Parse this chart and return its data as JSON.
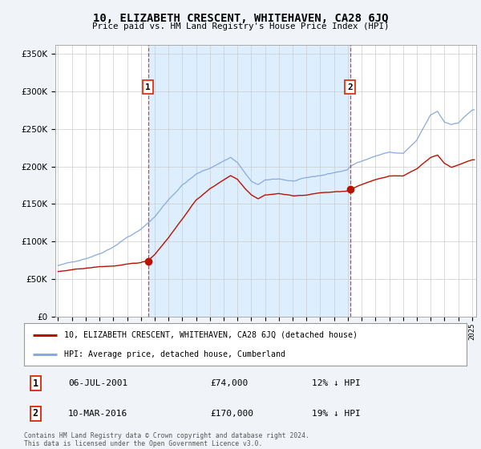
{
  "title": "10, ELIZABETH CRESCENT, WHITEHAVEN, CA28 6JQ",
  "subtitle": "Price paid vs. HM Land Registry's House Price Index (HPI)",
  "ytick_values": [
    0,
    50000,
    100000,
    150000,
    200000,
    250000,
    300000,
    350000
  ],
  "ylim": [
    0,
    362000
  ],
  "xlim_start": 1994.8,
  "xlim_end": 2025.3,
  "sale1_date": 2001.52,
  "sale1_price": 74000,
  "sale1_label": "1",
  "sale1_text": "06-JUL-2001",
  "sale1_amount": "£74,000",
  "sale1_hpi": "12% ↓ HPI",
  "sale2_date": 2016.17,
  "sale2_price": 170000,
  "sale2_label": "2",
  "sale2_text": "10-MAR-2016",
  "sale2_amount": "£170,000",
  "sale2_hpi": "19% ↓ HPI",
  "hpi_color": "#88aadd",
  "price_color": "#bb1100",
  "dashed_color": "#dd3311",
  "shade_color": "#ddeeff",
  "background_color": "#f0f4f8",
  "plot_bg_color": "#ffffff",
  "legend_line1": "10, ELIZABETH CRESCENT, WHITEHAVEN, CA28 6JQ (detached house)",
  "legend_line2": "HPI: Average price, detached house, Cumberland",
  "footnote": "Contains HM Land Registry data © Crown copyright and database right 2024.\nThis data is licensed under the Open Government Licence v3.0."
}
